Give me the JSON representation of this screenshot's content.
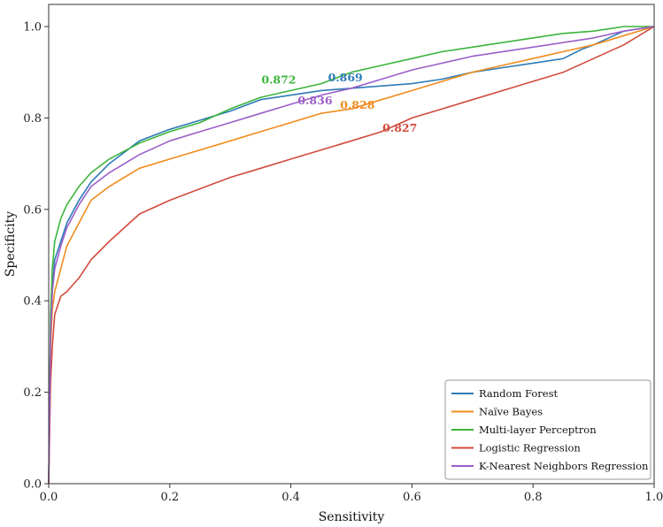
{
  "chart_data": {
    "type": "line",
    "title": "",
    "xlabel": "Sensitivity",
    "ylabel": "Specificity",
    "xlim": [
      0.0,
      1.0
    ],
    "ylim": [
      0.0,
      1.0
    ],
    "xticks": [
      "0.0",
      "0.2",
      "0.4",
      "0.6",
      "0.8",
      "1.0"
    ],
    "yticks": [
      "0.0",
      "0.2",
      "0.4",
      "0.6",
      "0.8",
      "1.0"
    ],
    "grid": false,
    "legend_position": "bottom-right",
    "series": [
      {
        "name": "Random Forest",
        "color": "#2d7bb6",
        "auc_label": "0.869",
        "x": [
          0,
          0.003,
          0.006,
          0.01,
          0.02,
          0.03,
          0.05,
          0.07,
          0.1,
          0.15,
          0.2,
          0.25,
          0.3,
          0.35,
          0.4,
          0.45,
          0.5,
          0.55,
          0.6,
          0.65,
          0.7,
          0.75,
          0.8,
          0.85,
          0.88,
          0.9,
          0.95,
          1.0
        ],
        "y": [
          0.0,
          0.33,
          0.43,
          0.49,
          0.53,
          0.57,
          0.62,
          0.66,
          0.7,
          0.75,
          0.775,
          0.795,
          0.815,
          0.84,
          0.85,
          0.86,
          0.865,
          0.87,
          0.875,
          0.885,
          0.9,
          0.91,
          0.92,
          0.93,
          0.95,
          0.96,
          0.99,
          1.0
        ]
      },
      {
        "name": "Naïve Bayes",
        "color": "#f08c1f",
        "auc_label": "0.828",
        "x": [
          0,
          0.003,
          0.006,
          0.01,
          0.02,
          0.03,
          0.05,
          0.07,
          0.1,
          0.15,
          0.2,
          0.25,
          0.3,
          0.35,
          0.4,
          0.45,
          0.5,
          0.55,
          0.6,
          0.65,
          0.7,
          0.75,
          0.8,
          0.85,
          0.9,
          0.95,
          1.0
        ],
        "y": [
          0.0,
          0.3,
          0.38,
          0.42,
          0.47,
          0.52,
          0.57,
          0.62,
          0.65,
          0.69,
          0.71,
          0.73,
          0.75,
          0.77,
          0.79,
          0.81,
          0.82,
          0.84,
          0.86,
          0.88,
          0.9,
          0.915,
          0.93,
          0.945,
          0.96,
          0.98,
          1.0
        ]
      },
      {
        "name": "Multi-layer Perceptron",
        "color": "#3cb43c",
        "auc_label": "0.872",
        "x": [
          0,
          0.003,
          0.006,
          0.01,
          0.02,
          0.03,
          0.05,
          0.07,
          0.1,
          0.15,
          0.2,
          0.25,
          0.3,
          0.35,
          0.4,
          0.45,
          0.5,
          0.55,
          0.6,
          0.65,
          0.7,
          0.75,
          0.8,
          0.85,
          0.9,
          0.95,
          1.0
        ],
        "y": [
          0.0,
          0.37,
          0.47,
          0.53,
          0.58,
          0.61,
          0.65,
          0.68,
          0.71,
          0.745,
          0.77,
          0.79,
          0.82,
          0.845,
          0.86,
          0.875,
          0.9,
          0.915,
          0.93,
          0.945,
          0.955,
          0.965,
          0.975,
          0.985,
          0.99,
          1.0,
          1.0
        ]
      },
      {
        "name": "Logistic Regression",
        "color": "#d24a3c",
        "auc_label": "0.827",
        "x": [
          0,
          0.003,
          0.006,
          0.01,
          0.02,
          0.03,
          0.05,
          0.07,
          0.1,
          0.15,
          0.2,
          0.25,
          0.3,
          0.35,
          0.4,
          0.45,
          0.5,
          0.55,
          0.6,
          0.65,
          0.7,
          0.75,
          0.8,
          0.85,
          0.9,
          0.95,
          1.0
        ],
        "y": [
          0.0,
          0.22,
          0.3,
          0.37,
          0.41,
          0.42,
          0.45,
          0.49,
          0.53,
          0.59,
          0.62,
          0.645,
          0.67,
          0.69,
          0.71,
          0.73,
          0.75,
          0.77,
          0.8,
          0.82,
          0.84,
          0.86,
          0.88,
          0.9,
          0.93,
          0.96,
          1.0
        ]
      },
      {
        "name": "K-Nearest Neighbors Regression",
        "color": "#9b5ec8",
        "auc_label": "0.836",
        "x": [
          0,
          0.003,
          0.006,
          0.01,
          0.02,
          0.03,
          0.05,
          0.07,
          0.1,
          0.15,
          0.2,
          0.25,
          0.3,
          0.35,
          0.4,
          0.45,
          0.5,
          0.55,
          0.6,
          0.65,
          0.7,
          0.75,
          0.8,
          0.85,
          0.9,
          0.95,
          1.0
        ],
        "y": [
          0.0,
          0.32,
          0.42,
          0.47,
          0.52,
          0.56,
          0.61,
          0.65,
          0.68,
          0.72,
          0.75,
          0.77,
          0.79,
          0.81,
          0.83,
          0.85,
          0.865,
          0.885,
          0.905,
          0.92,
          0.935,
          0.945,
          0.955,
          0.965,
          0.975,
          0.99,
          1.0
        ]
      }
    ],
    "annotations": [
      {
        "text": "0.872",
        "series": "Multi-layer Perceptron",
        "x": 0.38,
        "y": 0.875
      },
      {
        "text": "0.869",
        "series": "Random Forest",
        "x": 0.49,
        "y": 0.88
      },
      {
        "text": "0.836",
        "series": "K-Nearest Neighbors Regression",
        "x": 0.44,
        "y": 0.83
      },
      {
        "text": "0.828",
        "series": "Naïve Bayes",
        "x": 0.51,
        "y": 0.82
      },
      {
        "text": "0.827",
        "series": "Logistic Regression",
        "x": 0.58,
        "y": 0.77
      }
    ]
  }
}
